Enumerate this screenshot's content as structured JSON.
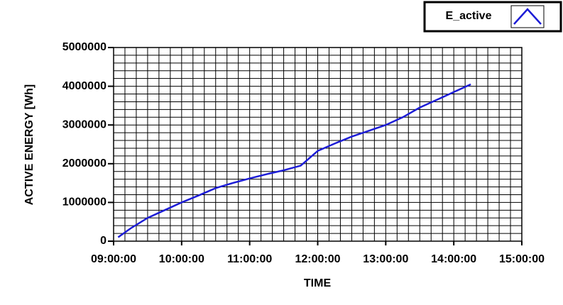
{
  "chart_data": {
    "type": "line",
    "xlabel": "TIME",
    "ylabel": "ACTIVE ENERGY [Wh]",
    "x": [
      "09:04:00",
      "09:15:00",
      "09:30:00",
      "09:45:00",
      "10:00:00",
      "10:15:00",
      "10:30:00",
      "10:45:00",
      "11:00:00",
      "11:15:00",
      "11:30:00",
      "11:45:00",
      "12:00:00",
      "12:15:00",
      "12:30:00",
      "12:45:00",
      "13:00:00",
      "13:15:00",
      "13:30:00",
      "13:45:00",
      "14:00:00",
      "14:15:00"
    ],
    "series": [
      {
        "name": "E_active",
        "color": "#1c1cd6",
        "values": [
          100000,
          330000,
          600000,
          800000,
          1000000,
          1180000,
          1370000,
          1500000,
          1620000,
          1730000,
          1830000,
          1950000,
          2330000,
          2520000,
          2700000,
          2850000,
          3000000,
          3200000,
          3450000,
          3650000,
          3850000,
          4050000
        ]
      }
    ],
    "xlim": [
      "09:00:00",
      "15:00:00"
    ],
    "xticks": [
      "09:00:00",
      "10:00:00",
      "11:00:00",
      "12:00:00",
      "13:00:00",
      "14:00:00",
      "15:00:00"
    ],
    "ylim": [
      0,
      5000000
    ],
    "yticks": [
      0,
      1000000,
      2000000,
      3000000,
      4000000,
      5000000
    ],
    "grid": true,
    "minor_grid": {
      "x": 6,
      "y": 5
    },
    "legend": "top-right"
  }
}
